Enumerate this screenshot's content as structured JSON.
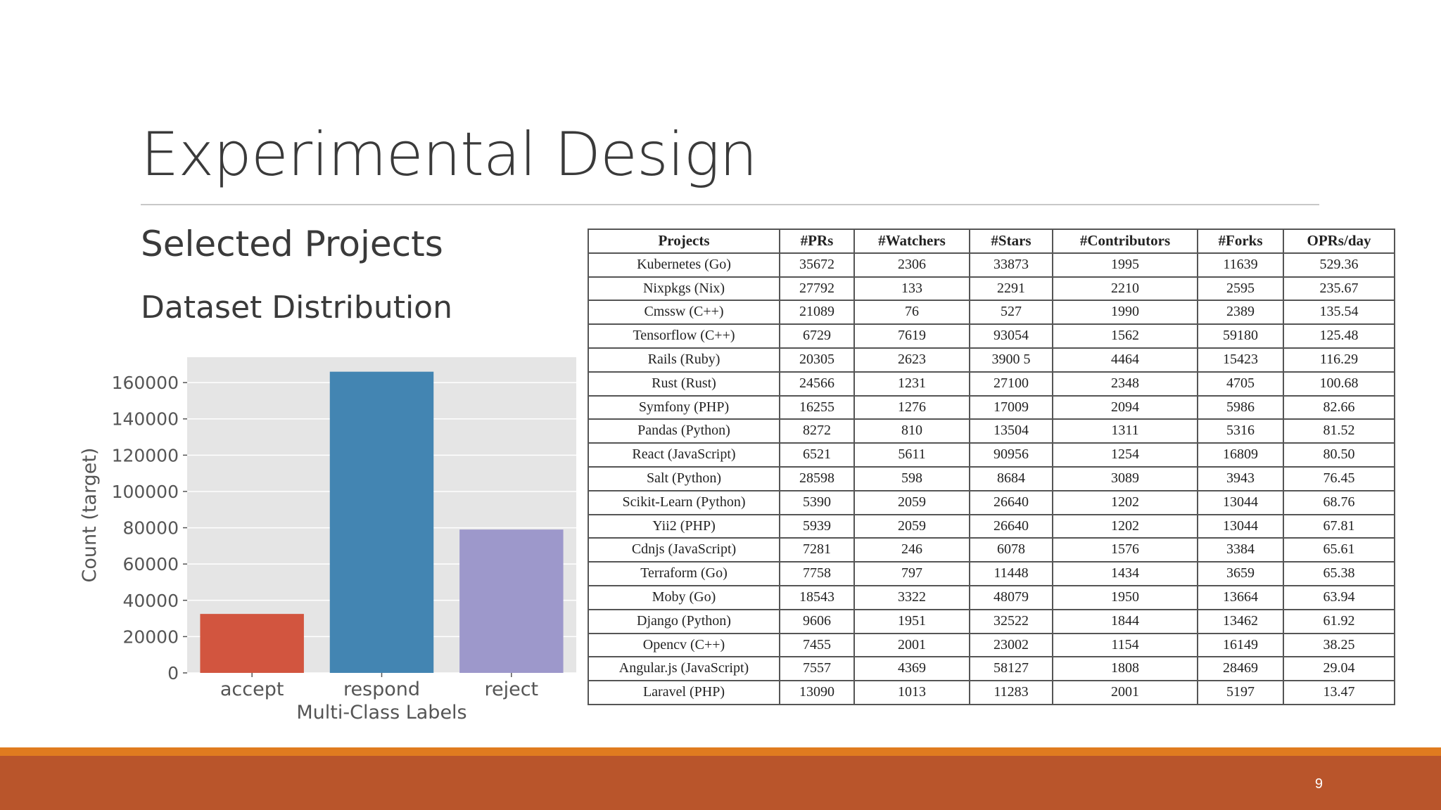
{
  "slide": {
    "title": "Experimental Design",
    "subheading_1": "Selected Projects",
    "subheading_2": "Dataset Distribution",
    "page_number": "9",
    "colors": {
      "footer_bar": "#b9552b",
      "footer_stripe": "#e07b1f"
    }
  },
  "chart_data": {
    "type": "bar",
    "categories": [
      "accept",
      "respond",
      "reject"
    ],
    "values": [
      32500,
      166000,
      79000
    ],
    "colors": [
      "#d2553f",
      "#4385b2",
      "#9d98cb"
    ],
    "title": "",
    "xlabel": "Multi-Class Labels",
    "ylabel": "Count (target)",
    "ylim": [
      0,
      174000
    ],
    "yticks": [
      0,
      20000,
      40000,
      60000,
      80000,
      100000,
      120000,
      140000,
      160000
    ],
    "grid": true,
    "background": "#e5e5e5"
  },
  "table": {
    "headers": [
      "Projects",
      "#PRs",
      "#Watchers",
      "#Stars",
      "#Contributors",
      "#Forks",
      "OPRs/day"
    ],
    "rows": [
      [
        "Kubernetes (Go)",
        "35672",
        "2306",
        "33873",
        "1995",
        "11639",
        "529.36"
      ],
      [
        "Nixpkgs (Nix)",
        "27792",
        "133",
        "2291",
        "2210",
        "2595",
        "235.67"
      ],
      [
        "Cmssw (C++)",
        "21089",
        "76",
        "527",
        "1990",
        "2389",
        "135.54"
      ],
      [
        "Tensorflow (C++)",
        "6729",
        "7619",
        "93054",
        "1562",
        "59180",
        "125.48"
      ],
      [
        "Rails (Ruby)",
        "20305",
        "2623",
        "3900 5",
        "4464",
        "15423",
        "116.29"
      ],
      [
        "Rust (Rust)",
        "24566",
        "1231",
        "27100",
        "2348",
        "4705",
        "100.68"
      ],
      [
        "Symfony (PHP)",
        "16255",
        "1276",
        "17009",
        "2094",
        "5986",
        "82.66"
      ],
      [
        "Pandas (Python)",
        "8272",
        "810",
        "13504",
        "1311",
        "5316",
        "81.52"
      ],
      [
        "React (JavaScript)",
        "6521",
        "5611",
        "90956",
        "1254",
        "16809",
        "80.50"
      ],
      [
        "Salt (Python)",
        "28598",
        "598",
        "8684",
        "3089",
        "3943",
        "76.45"
      ],
      [
        "Scikit-Learn (Python)",
        "5390",
        "2059",
        "26640",
        "1202",
        "13044",
        "68.76"
      ],
      [
        "Yii2 (PHP)",
        "5939",
        "2059",
        "26640",
        "1202",
        "13044",
        "67.81"
      ],
      [
        "Cdnjs (JavaScript)",
        "7281",
        "246",
        "6078",
        "1576",
        "3384",
        "65.61"
      ],
      [
        "Terraform (Go)",
        "7758",
        "797",
        "11448",
        "1434",
        "3659",
        "65.38"
      ],
      [
        "Moby (Go)",
        "18543",
        "3322",
        "48079",
        "1950",
        "13664",
        "63.94"
      ],
      [
        "Django (Python)",
        "9606",
        "1951",
        "32522",
        "1844",
        "13462",
        "61.92"
      ],
      [
        "Opencv (C++)",
        "7455",
        "2001",
        "23002",
        "1154",
        "16149",
        "38.25"
      ],
      [
        "Angular.js (JavaScript)",
        "7557",
        "4369",
        "58127",
        "1808",
        "28469",
        "29.04"
      ],
      [
        "Laravel (PHP)",
        "13090",
        "1013",
        "11283",
        "2001",
        "5197",
        "13.47"
      ]
    ]
  }
}
